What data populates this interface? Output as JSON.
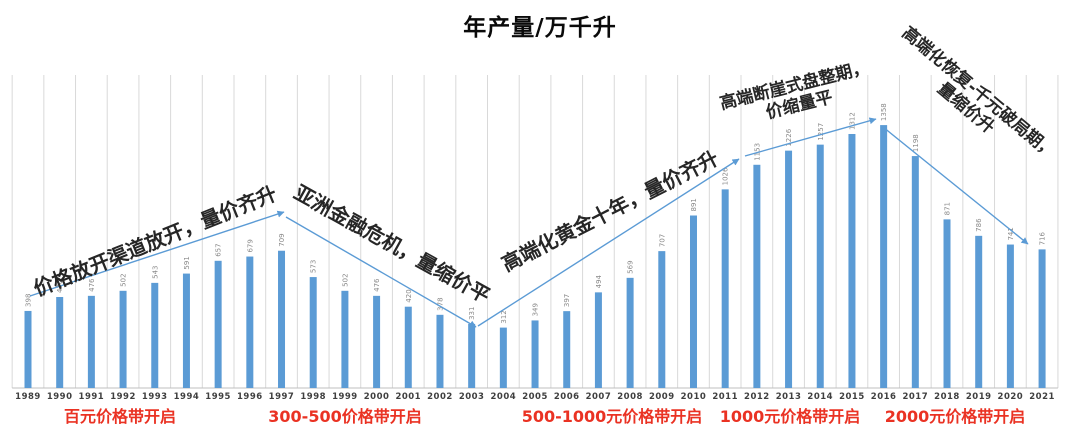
{
  "title": "年产量/万千升",
  "colors": {
    "bar": "#5B9BD5",
    "trend_line": "#5B9BD5",
    "gridline": "#d9d9d9",
    "baseline": "#bfbfbf",
    "value_label": "#8a8a8a",
    "axis_label": "#3f3f3f",
    "phase_label": "#ea3223",
    "annotation": "#262626"
  },
  "chart_data": {
    "type": "bar",
    "title": "年产量/万千升",
    "xlabel": "",
    "ylabel": "",
    "ylim": [
      0,
      1450
    ],
    "grid": "vertical-only",
    "legend": "none",
    "categories": [
      "1989",
      "1990",
      "1991",
      "1992",
      "1993",
      "1994",
      "1995",
      "1996",
      "1997",
      "1998",
      "1999",
      "2000",
      "2001",
      "2002",
      "2003",
      "2004",
      "2005",
      "2006",
      "2007",
      "2008",
      "2009",
      "2010",
      "2011",
      "2012",
      "2013",
      "2014",
      "2015",
      "2016",
      "2017",
      "2018",
      "2019",
      "2020",
      "2021"
    ],
    "values": [
      398,
      470,
      476,
      502,
      543,
      591,
      657,
      679,
      709,
      573,
      502,
      476,
      420,
      378,
      331,
      312,
      349,
      397,
      494,
      569,
      707,
      891,
      1026,
      1153,
      1226,
      1257,
      1312,
      1358,
      1198,
      871,
      786,
      741,
      716
    ],
    "trend_annotations": [
      {
        "text": "价格放开渠道放开，量价齐升",
        "span": "1989-1997",
        "direction": "up"
      },
      {
        "text": "亚洲金融危机，量缩价平",
        "span": "1997-2003",
        "direction": "down"
      },
      {
        "text": "高端化黄金十年，量价齐升",
        "span": "2003-2011",
        "direction": "up"
      },
      {
        "text": "高端断崖式盘整期，\n价缩量平",
        "span": "2012-2016",
        "direction": "flat-up"
      },
      {
        "text": "高端化恢复-千元破局期，\n量缩价升",
        "span": "2016-2021",
        "direction": "down"
      }
    ],
    "phase_labels": [
      "百元价格带开启",
      "300-500价格带开启",
      "500-1000元价格带开启",
      "1000元价格带开启",
      "2000元价格带开启"
    ]
  }
}
